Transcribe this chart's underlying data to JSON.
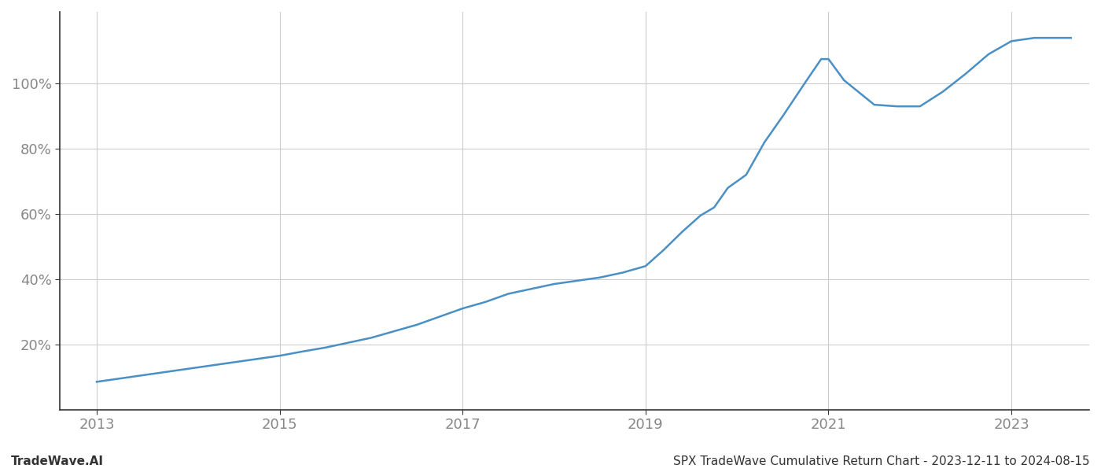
{
  "title": "SPX TradeWave Cumulative Return Chart - 2023-12-11 to 2024-08-15",
  "watermark": "TradeWave.AI",
  "line_color": "#4a90c4",
  "background_color": "#ffffff",
  "grid_color": "#cccccc",
  "x_values": [
    2013.0,
    2013.25,
    2013.5,
    2013.75,
    2014.0,
    2014.25,
    2014.5,
    2014.75,
    2015.0,
    2015.25,
    2015.5,
    2015.75,
    2016.0,
    2016.25,
    2016.5,
    2016.75,
    2017.0,
    2017.25,
    2017.5,
    2017.75,
    2018.0,
    2018.25,
    2018.5,
    2018.75,
    2019.0,
    2019.2,
    2019.4,
    2019.6,
    2019.75,
    2019.9,
    2020.1,
    2020.3,
    2020.5,
    2020.75,
    2020.92,
    2021.0,
    2021.17,
    2021.5,
    2021.75,
    2022.0,
    2022.25,
    2022.5,
    2022.75,
    2023.0,
    2023.25,
    2023.5,
    2023.65
  ],
  "y_values": [
    0.085,
    0.095,
    0.105,
    0.115,
    0.125,
    0.135,
    0.145,
    0.155,
    0.165,
    0.178,
    0.19,
    0.205,
    0.22,
    0.24,
    0.26,
    0.285,
    0.31,
    0.33,
    0.355,
    0.37,
    0.385,
    0.395,
    0.405,
    0.42,
    0.44,
    0.49,
    0.545,
    0.595,
    0.62,
    0.68,
    0.72,
    0.82,
    0.9,
    1.005,
    1.075,
    1.075,
    1.01,
    0.935,
    0.93,
    0.93,
    0.975,
    1.03,
    1.09,
    1.13,
    1.14,
    1.14,
    1.14
  ],
  "xlim": [
    2012.6,
    2023.85
  ],
  "ylim": [
    0.0,
    1.22
  ],
  "yticks": [
    0.2,
    0.4,
    0.6,
    0.8,
    1.0
  ],
  "ytick_labels": [
    "20%",
    "40%",
    "60%",
    "80%",
    "100%"
  ],
  "xticks": [
    2013,
    2015,
    2017,
    2019,
    2021,
    2023
  ],
  "spine_color": "#333333",
  "tick_color": "#888888",
  "title_fontsize": 11,
  "watermark_fontsize": 11,
  "tick_fontsize": 13,
  "line_width": 1.8
}
